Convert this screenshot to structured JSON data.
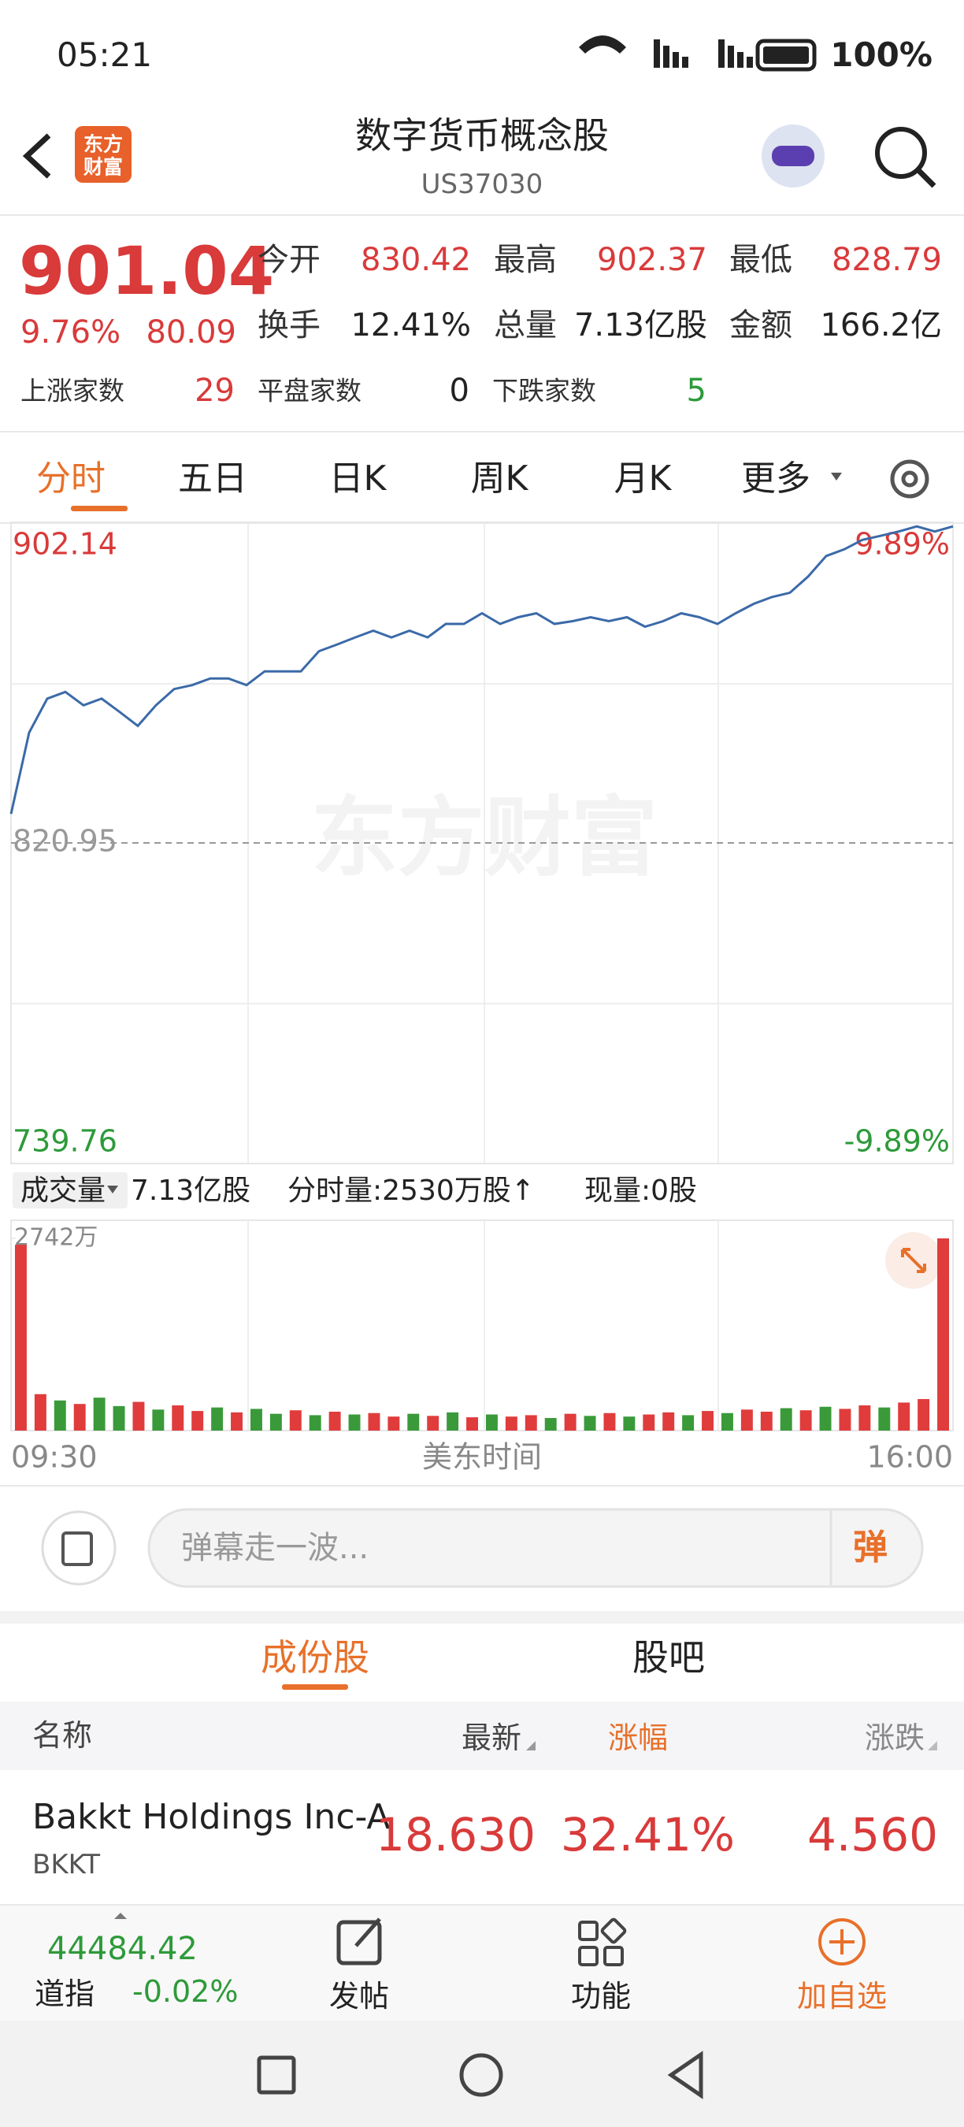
{
  "status_bar": {
    "time": "05:21",
    "battery": "100%"
  },
  "header": {
    "logo": "东方财富",
    "title": "数字货币概念股",
    "code": "US37030"
  },
  "quote": {
    "price": "901.04",
    "change_pct": "9.76%",
    "change": "80.09",
    "stats": [
      {
        "label": "今开",
        "value": "830.42"
      },
      {
        "label": "最高",
        "value": "902.37"
      },
      {
        "label": "最低",
        "value": "828.79"
      },
      {
        "label": "换手",
        "value": "12.41%"
      },
      {
        "label": "总量",
        "value": "7.13亿股"
      },
      {
        "label": "金额",
        "value": "166.2亿"
      }
    ],
    "breadth": [
      {
        "label": "上涨家数",
        "value": "29"
      },
      {
        "label": "平盘家数",
        "value": "0"
      },
      {
        "label": "下跌家数",
        "value": "5"
      }
    ]
  },
  "tabs": [
    "分时",
    "五日",
    "日K",
    "周K",
    "月K",
    "更多"
  ],
  "chart_data": [
    {
      "type": "line",
      "color": "#3b6aa8",
      "watermark": "东方财富",
      "values": [
        828.3,
        848.9,
        857.5,
        859.2,
        855.8,
        857.5,
        854.1,
        850.6,
        855.8,
        859.9,
        860.9,
        862.6,
        862.6,
        860.9,
        864.4,
        864.4,
        864.4,
        869.5,
        871.2,
        873.0,
        874.7,
        873.0,
        874.7,
        873.0,
        876.4,
        876.4,
        879.1,
        876.4,
        878.1,
        879.1,
        876.4,
        877.1,
        878.1,
        877.1,
        878.1,
        875.7,
        877.1,
        879.1,
        878.1,
        876.4,
        879.1,
        881.5,
        883.2,
        884.3,
        888.4,
        893.6,
        895.3,
        897.7,
        898.7,
        899.8,
        901.1,
        899.8,
        901.1
      ],
      "ylim": [
        739.76,
        902.14
      ],
      "yticks": [
        902.14,
        820.95,
        739.76
      ],
      "y2lim": [
        -9.89,
        9.89
      ],
      "y2ticks": [
        {
          "value": 9.89,
          "label": "9.89%"
        },
        {
          "value": -9.89,
          "label": "-9.89%"
        }
      ],
      "grid": true
    },
    {
      "type": "bar",
      "values": [
        2650,
        520,
        430,
        380,
        470,
        350,
        410,
        300,
        360,
        280,
        330,
        260,
        310,
        240,
        290,
        220,
        270,
        230,
        250,
        200,
        240,
        210,
        260,
        190,
        230,
        200,
        220,
        180,
        240,
        210,
        250,
        200,
        230,
        260,
        220,
        280,
        250,
        300,
        270,
        320,
        290,
        340,
        310,
        360,
        330,
        400,
        450,
        2742
      ],
      "colors": [
        "#e03c3c",
        "#e03c3c",
        "#3a9a3a",
        "#e03c3c",
        "#3a9a3a",
        "#3a9a3a",
        "#e03c3c",
        "#3a9a3a",
        "#e03c3c",
        "#e03c3c",
        "#3a9a3a",
        "#e03c3c",
        "#3a9a3a",
        "#3a9a3a",
        "#e03c3c",
        "#3a9a3a",
        "#e03c3c",
        "#3a9a3a",
        "#e03c3c",
        "#e03c3c",
        "#3a9a3a",
        "#e03c3c",
        "#3a9a3a",
        "#e03c3c",
        "#3a9a3a",
        "#e03c3c",
        "#e03c3c",
        "#3a9a3a",
        "#e03c3c",
        "#3a9a3a",
        "#e03c3c",
        "#3a9a3a",
        "#e03c3c",
        "#e03c3c",
        "#3a9a3a",
        "#e03c3c",
        "#3a9a3a",
        "#e03c3c",
        "#e03c3c",
        "#3a9a3a",
        "#e03c3c",
        "#3a9a3a",
        "#e03c3c",
        "#e03c3c",
        "#3a9a3a",
        "#e03c3c",
        "#e03c3c",
        "#e03c3c"
      ],
      "ylim": [
        0,
        2742
      ],
      "yticks": [
        {
          "value": 2742,
          "label": "2742万"
        }
      ],
      "x_labels": [
        "09:30",
        "16:00"
      ],
      "xlabel": "美东时间"
    }
  ],
  "volume_bar": {
    "selector": "成交量",
    "total": "7.13亿股",
    "minute_volume": "分时量:2530万股↑",
    "current": "现量:0股"
  },
  "comment": {
    "placeholder": "弹幕走一波...",
    "button": "弹"
  },
  "sub_tabs": [
    "成份股",
    "股吧"
  ],
  "table": {
    "columns": [
      "名称",
      "最新",
      "涨幅",
      "涨跌"
    ],
    "rows": [
      {
        "name": "Bakkt Holdings Inc-A",
        "code": "BKKT",
        "price": "18.630",
        "change_pct": "32.41%",
        "change": "4.560"
      }
    ]
  },
  "bottom_bar": {
    "index_value": "44484.42",
    "index_name": "道指",
    "index_change": "-0.02%",
    "buttons": [
      "发帖",
      "功能",
      "加自选"
    ]
  }
}
